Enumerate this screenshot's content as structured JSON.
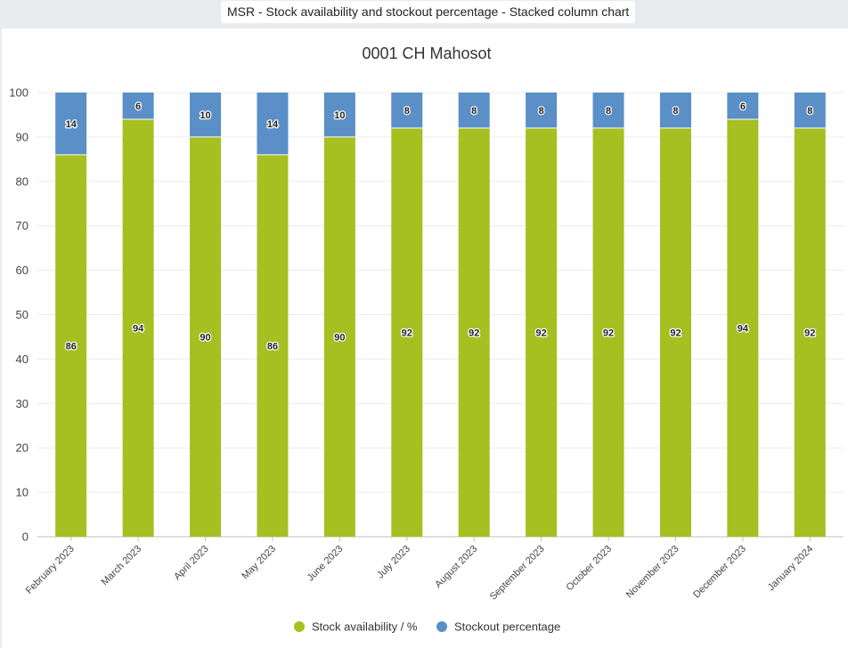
{
  "window": {
    "title": "MSR - Stock availability and stockout percentage - Stacked column chart"
  },
  "chart_data": {
    "type": "bar",
    "stacked": true,
    "title": "0001 CH Mahosot",
    "categories": [
      "February 2023",
      "March 2023",
      "April 2023",
      "May 2023",
      "June 2023",
      "July 2023",
      "August 2023",
      "September 2023",
      "October 2023",
      "November 2023",
      "December 2023",
      "January 2024"
    ],
    "series": [
      {
        "name": "Stock availability / %",
        "color": "#a6bf21",
        "values": [
          86,
          94,
          90,
          86,
          90,
          92,
          92,
          92,
          92,
          92,
          94,
          92
        ]
      },
      {
        "name": "Stockout percentage",
        "color": "#5a8fc7",
        "values": [
          14,
          6,
          10,
          14,
          10,
          8,
          8,
          8,
          8,
          8,
          6,
          8
        ]
      }
    ],
    "ylim": [
      0,
      100
    ],
    "yticks": [
      0,
      10,
      20,
      30,
      40,
      50,
      60,
      70,
      80,
      90,
      100
    ],
    "grid": true,
    "legend": "bottom-center"
  }
}
